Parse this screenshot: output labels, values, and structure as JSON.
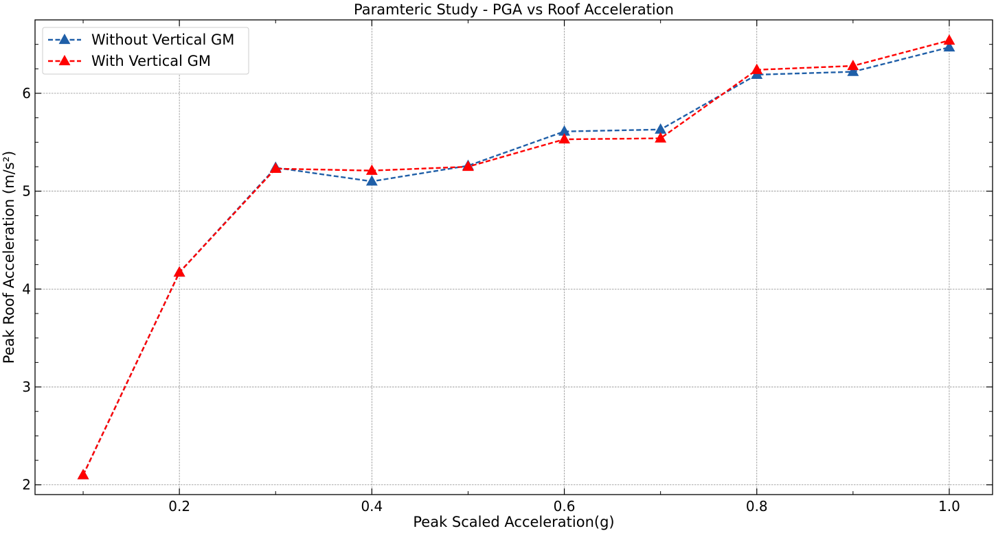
{
  "chart_data": {
    "type": "line",
    "title": "Paramteric Study - PGA vs Roof Acceleration",
    "xlabel": "Peak Scaled Acceleration(g)",
    "ylabel": "Peak Roof Acceleration (m/s²)",
    "xlim": [
      0.05,
      1.045
    ],
    "ylim": [
      1.9,
      6.75
    ],
    "xticks": [
      0.2,
      0.4,
      0.6,
      0.8,
      1.0
    ],
    "xtick_labels": [
      "0.2",
      "0.4",
      "0.6",
      "0.8",
      "1.0"
    ],
    "yticks": [
      2,
      3,
      4,
      5,
      6
    ],
    "ytick_labels": [
      "2",
      "3",
      "4",
      "5",
      "6"
    ],
    "grid": true,
    "legend_position": "top-left",
    "x": [
      0.1,
      0.2,
      0.3,
      0.4,
      0.5,
      0.6,
      0.7,
      0.8,
      0.9,
      1.0
    ],
    "series": [
      {
        "name": "Without Vertical GM",
        "color": "#1f5fa8",
        "marker": "triangle",
        "line_style": "dashed",
        "values": [
          2.1,
          4.17,
          5.24,
          5.1,
          5.26,
          5.61,
          5.63,
          6.19,
          6.22,
          6.47
        ]
      },
      {
        "name": "With Vertical GM",
        "color": "#ff0000",
        "marker": "triangle",
        "line_style": "dashed",
        "values": [
          2.1,
          4.17,
          5.23,
          5.21,
          5.25,
          5.53,
          5.54,
          6.24,
          6.28,
          6.54
        ]
      }
    ]
  }
}
